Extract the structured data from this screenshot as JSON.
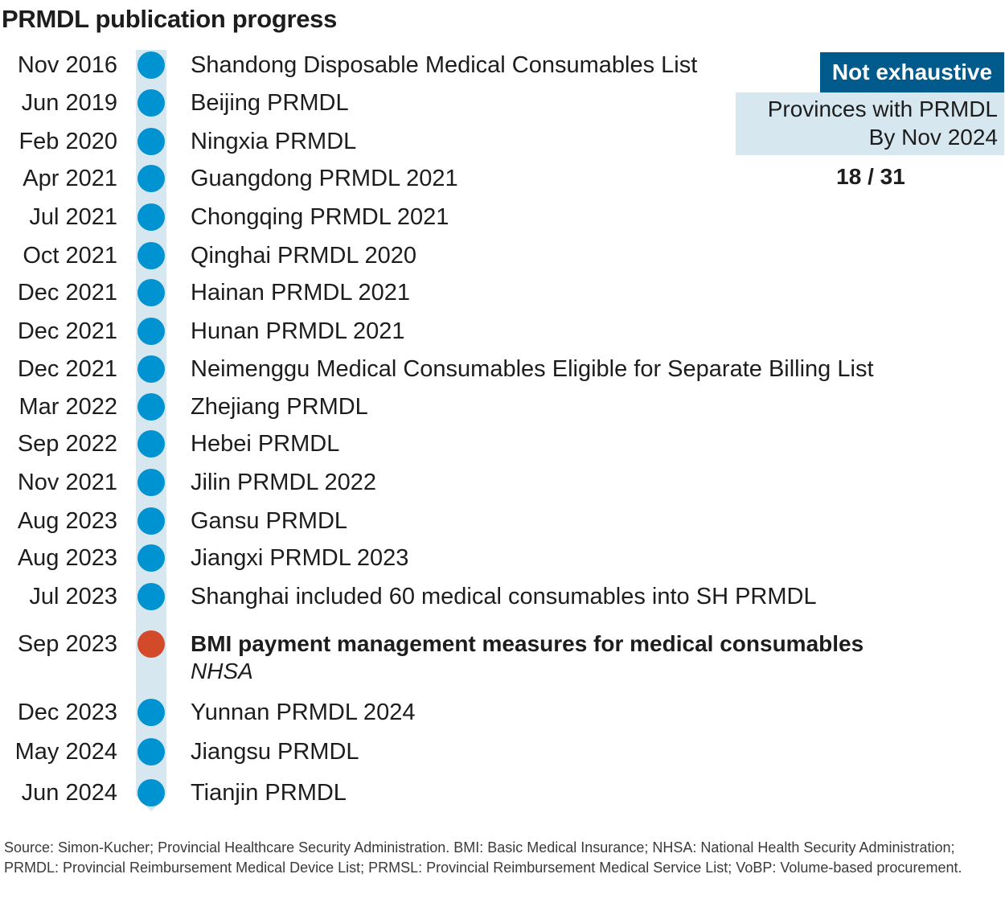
{
  "title": "PRMDL publication progress",
  "colors": {
    "timeline_bar": "#d6e7f0",
    "dot_default": "#0093d2",
    "dot_highlight": "#d24a2a",
    "badge_bg": "#005a8c",
    "box_bg": "#d6e7f0"
  },
  "events": [
    {
      "date": "Nov 2016",
      "label": "Shandong Disposable Medical Consumables List",
      "highlight": false
    },
    {
      "date": "Jun 2019",
      "label": "Beijing PRMDL",
      "highlight": false
    },
    {
      "date": "Feb 2020",
      "label": "Ningxia PRMDL",
      "highlight": false
    },
    {
      "date": "Apr 2021",
      "label": "Guangdong PRMDL 2021",
      "highlight": false
    },
    {
      "date": "Jul 2021",
      "label": "Chongqing PRMDL 2021",
      "highlight": false
    },
    {
      "date": "Oct 2021",
      "label": "Qinghai PRMDL 2020",
      "highlight": false
    },
    {
      "date": "Dec 2021",
      "label": "Hainan PRMDL 2021",
      "highlight": false
    },
    {
      "date": "Dec 2021",
      "label": "Hunan PRMDL 2021",
      "highlight": false
    },
    {
      "date": "Dec 2021",
      "label": "Neimenggu Medical Consumables Eligible for Separate Billing List",
      "highlight": false
    },
    {
      "date": "Mar 2022",
      "label": "Zhejiang PRMDL",
      "highlight": false
    },
    {
      "date": "Sep 2022",
      "label": "Hebei PRMDL",
      "highlight": false
    },
    {
      "date": "Nov 2021",
      "label": "Jilin PRMDL 2022",
      "highlight": false
    },
    {
      "date": "Aug 2023",
      "label": "Gansu PRMDL",
      "highlight": false
    },
    {
      "date": "Aug 2023",
      "label": "Jiangxi PRMDL 2023",
      "highlight": false
    },
    {
      "date": "Jul 2023",
      "label": "Shanghai included 60 medical consumables into SH PRMDL",
      "highlight": false
    },
    {
      "date": "Sep 2023",
      "label": "BMI payment management measures for medical consumables",
      "sub": "NHSA",
      "highlight": true
    },
    {
      "date": "Dec 2023",
      "label": "Yunnan PRMDL 2024",
      "highlight": false
    },
    {
      "date": "May 2024",
      "label": "Jiangsu PRMDL",
      "highlight": false
    },
    {
      "date": "Jun 2024",
      "label": "Tianjin PRMDL",
      "highlight": false
    }
  ],
  "badge": "Not exhaustive",
  "provinces": {
    "line1": "Provinces with PRMDL",
    "line2": "By Nov 2024",
    "count": "18 / 31"
  },
  "source": "Source: Simon-Kucher; Provincial Healthcare Security Administration. BMI: Basic Medical Insurance; NHSA: National Health Security Administration; PRMDL: Provincial Reimbursement Medical Device List; PRMSL: Provincial Reimbursement Medical Service List; VoBP: Volume-based procurement."
}
